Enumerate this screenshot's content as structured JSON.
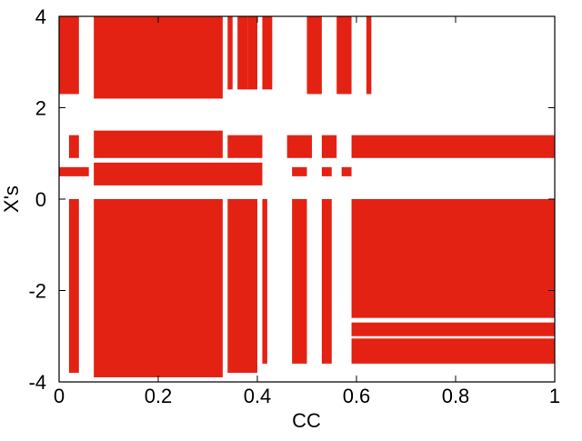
{
  "chart_data": {
    "type": "scatter-regions",
    "xlabel": "CC",
    "ylabel": "X's",
    "color": "#e32214",
    "xlim": [
      0,
      1
    ],
    "ylim": [
      -4,
      4
    ],
    "xticks": [
      0,
      0.2,
      0.4,
      0.6,
      0.8,
      1
    ],
    "yticks": [
      -4,
      -2,
      0,
      2,
      4
    ],
    "regions": [
      {
        "x": [
          0,
          0.04
        ],
        "y": [
          2.3,
          4
        ]
      },
      {
        "x": [
          0.07,
          0.33
        ],
        "y": [
          2.2,
          4
        ]
      },
      {
        "x": [
          0.34,
          0.35
        ],
        "y": [
          2.4,
          4
        ]
      },
      {
        "x": [
          0.36,
          0.38
        ],
        "y": [
          2.4,
          4
        ]
      },
      {
        "x": [
          0.38,
          0.4
        ],
        "y": [
          2.4,
          4
        ]
      },
      {
        "x": [
          0.41,
          0.43
        ],
        "y": [
          2.4,
          4
        ]
      },
      {
        "x": [
          0.5,
          0.53
        ],
        "y": [
          2.3,
          4
        ]
      },
      {
        "x": [
          0.56,
          0.59
        ],
        "y": [
          2.3,
          4
        ]
      },
      {
        "x": [
          0.62,
          0.63
        ],
        "y": [
          2.3,
          4
        ]
      },
      {
        "x": [
          0.02,
          0.04
        ],
        "y": [
          0.9,
          1.4
        ]
      },
      {
        "x": [
          0.07,
          0.33
        ],
        "y": [
          0.9,
          1.5
        ]
      },
      {
        "x": [
          0.34,
          0.41
        ],
        "y": [
          0.9,
          1.4
        ]
      },
      {
        "x": [
          0.46,
          0.51
        ],
        "y": [
          0.9,
          1.4
        ]
      },
      {
        "x": [
          0.53,
          0.56
        ],
        "y": [
          0.9,
          1.4
        ]
      },
      {
        "x": [
          0.59,
          1
        ],
        "y": [
          0.9,
          1.4
        ]
      },
      {
        "x": [
          0,
          0.06
        ],
        "y": [
          0.5,
          0.7
        ]
      },
      {
        "x": [
          0.07,
          0.41
        ],
        "y": [
          0.3,
          0.8
        ]
      },
      {
        "x": [
          0.47,
          0.5
        ],
        "y": [
          0.5,
          0.7
        ]
      },
      {
        "x": [
          0.53,
          0.55
        ],
        "y": [
          0.5,
          0.7
        ]
      },
      {
        "x": [
          0.57,
          0.59
        ],
        "y": [
          0.5,
          0.7
        ]
      },
      {
        "x": [
          0.02,
          0.04
        ],
        "y": [
          -3.8,
          0
        ]
      },
      {
        "x": [
          0.07,
          0.33
        ],
        "y": [
          -3.9,
          0
        ]
      },
      {
        "x": [
          0.34,
          0.4
        ],
        "y": [
          -3.8,
          0
        ]
      },
      {
        "x": [
          0.41,
          0.42
        ],
        "y": [
          -3.6,
          0
        ]
      },
      {
        "x": [
          0.47,
          0.5
        ],
        "y": [
          -3.6,
          0
        ]
      },
      {
        "x": [
          0.53,
          0.55
        ],
        "y": [
          -3.6,
          0
        ]
      },
      {
        "x": [
          0.59,
          1
        ],
        "y": [
          -2.6,
          0
        ]
      },
      {
        "x": [
          0.59,
          1
        ],
        "y": [
          -3.0,
          -2.7
        ]
      },
      {
        "x": [
          0.59,
          1
        ],
        "y": [
          -3.6,
          -3.05
        ]
      }
    ]
  }
}
